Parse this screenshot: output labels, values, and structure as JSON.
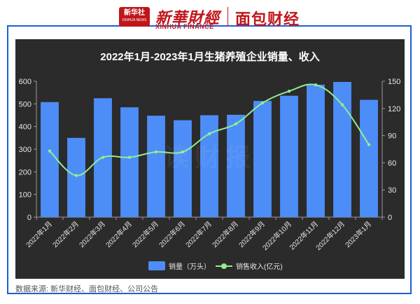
{
  "header": {
    "xinhua_emblem_text": "新华社",
    "xinhua_emblem_sub": "XINHUA NEWS",
    "xinhua_brand": "新華財經",
    "xinhua_sub": "XINHUA FINANCE",
    "mianbao_brand": "面包财经"
  },
  "watermark": "读财报",
  "source_note": "数据来源: 新华财经、面包财经、公司公告",
  "colors": {
    "bar": "#4d8df7",
    "line": "#90ee90",
    "panel": "#2b2b2b",
    "frame": "#1e5fd6",
    "brand_red": "#c0161b"
  },
  "chart_data": {
    "type": "bar",
    "title": "2022年1月-2023年1月生猪养殖企业销量、收入",
    "categories": [
      "2022年1月",
      "2022年2月",
      "2022年3月",
      "2022年4月",
      "2022年5月",
      "2022年6月",
      "2022年7月",
      "2022年8月",
      "2022年9月",
      "2022年10月",
      "2022年11月",
      "2022年12月",
      "2023年1月"
    ],
    "series": [
      {
        "name": "销量（万头）",
        "type": "bar",
        "axis": "left",
        "values": [
          508,
          350,
          525,
          485,
          448,
          428,
          450,
          452,
          513,
          536,
          585,
          597,
          518
        ]
      },
      {
        "name": "销售收入(亿元)",
        "type": "line",
        "axis": "right",
        "values": [
          73,
          46,
          66,
          66,
          72,
          72,
          92,
          103,
          126,
          139,
          146,
          124,
          80
        ]
      }
    ],
    "y_left": {
      "min": 0,
      "max": 600,
      "ticks": [
        0,
        100,
        200,
        300,
        400,
        500,
        600
      ]
    },
    "y_right": {
      "min": 0,
      "max": 150,
      "ticks": [
        0,
        30,
        60,
        90,
        120,
        150
      ]
    },
    "legend_position": "bottom-center",
    "grid": false
  }
}
